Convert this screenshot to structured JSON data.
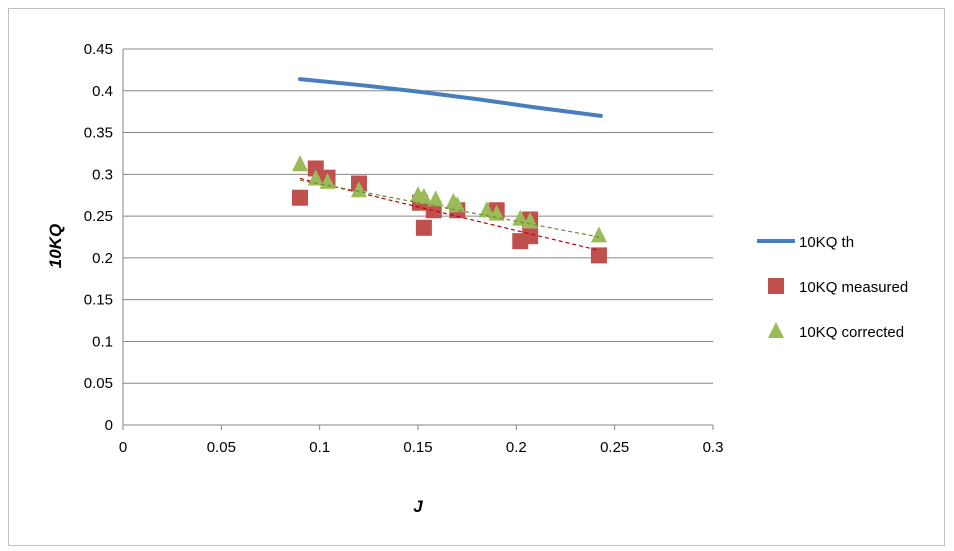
{
  "chart_data": {
    "type": "scatter",
    "title": "",
    "xlabel": "J",
    "ylabel": "10KQ",
    "xlim": [
      0,
      0.3
    ],
    "ylim": [
      0,
      0.45
    ],
    "x_ticks": [
      "0",
      "0.05",
      "0.1",
      "0.15",
      "0.2",
      "0.25",
      "0.3"
    ],
    "y_ticks": [
      "0",
      "0.05",
      "0.1",
      "0.15",
      "0.2",
      "0.25",
      "0.3",
      "0.35",
      "0.4",
      "0.45"
    ],
    "grid": "horizontal",
    "legend_position": "right",
    "series": [
      {
        "name": "10KQ th",
        "kind": "line",
        "color": "#4a7ebb",
        "points": [
          [
            0.09,
            0.414
          ],
          [
            0.12,
            0.407
          ],
          [
            0.15,
            0.399
          ],
          [
            0.18,
            0.39
          ],
          [
            0.21,
            0.38
          ],
          [
            0.243,
            0.37
          ]
        ]
      },
      {
        "name": "10KQ measured",
        "kind": "square",
        "color": "#c0504d",
        "points": [
          [
            0.09,
            0.272
          ],
          [
            0.098,
            0.307
          ],
          [
            0.104,
            0.296
          ],
          [
            0.12,
            0.289
          ],
          [
            0.151,
            0.266
          ],
          [
            0.153,
            0.236
          ],
          [
            0.158,
            0.257
          ],
          [
            0.17,
            0.257
          ],
          [
            0.19,
            0.257
          ],
          [
            0.202,
            0.22
          ],
          [
            0.207,
            0.246
          ],
          [
            0.207,
            0.226
          ],
          [
            0.242,
            0.203
          ]
        ],
        "trendline": [
          [
            0.09,
            0.295
          ],
          [
            0.242,
            0.209
          ]
        ]
      },
      {
        "name": "10KQ corrected",
        "kind": "triangle",
        "color": "#9bbb59",
        "points": [
          [
            0.09,
            0.312
          ],
          [
            0.098,
            0.295
          ],
          [
            0.104,
            0.291
          ],
          [
            0.12,
            0.281
          ],
          [
            0.15,
            0.275
          ],
          [
            0.153,
            0.273
          ],
          [
            0.159,
            0.27
          ],
          [
            0.168,
            0.267
          ],
          [
            0.17,
            0.263
          ],
          [
            0.185,
            0.257
          ],
          [
            0.19,
            0.253
          ],
          [
            0.202,
            0.247
          ],
          [
            0.207,
            0.244
          ],
          [
            0.242,
            0.227
          ]
        ],
        "trendline": [
          [
            0.09,
            0.293
          ],
          [
            0.242,
            0.225
          ]
        ]
      }
    ]
  }
}
